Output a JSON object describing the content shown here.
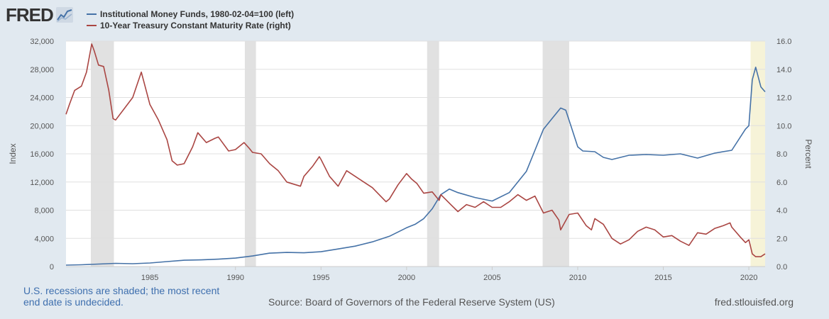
{
  "logo": {
    "text": "FRED"
  },
  "footer": {
    "note": "U.S. recessions are shaded; the most recent end date is undecided.",
    "source": "Source: Board of Governors of the Federal Reserve System (US)",
    "site": "fred.stlouisfed.org"
  },
  "colors": {
    "background": "#e1e9f0",
    "plot_background": "#ffffff",
    "recession": "#e1e1e1",
    "recession_recent": "#f6f3d8",
    "series_left": "#4572a7",
    "series_right": "#aa4643",
    "grid": "#e0e0e0",
    "axis_text": "#555555"
  },
  "chart_data": {
    "type": "line",
    "title": "",
    "legend_position": "top-left",
    "xlim": [
      1980.1,
      2020.95
    ],
    "x_ticks": [
      1985,
      1990,
      1995,
      2000,
      2005,
      2010,
      2015,
      2020
    ],
    "left_axis": {
      "label": "Index",
      "ylim": [
        0,
        32000
      ],
      "ticks": [
        0,
        4000,
        8000,
        12000,
        16000,
        20000,
        24000,
        28000,
        32000
      ],
      "tick_labels": [
        "0",
        "4,000",
        "8,000",
        "12,000",
        "16,000",
        "20,000",
        "24,000",
        "28,000",
        "32,000"
      ]
    },
    "right_axis": {
      "label": "Percent",
      "ylim": [
        0,
        16
      ],
      "ticks": [
        0,
        2,
        4,
        6,
        8,
        10,
        12,
        14,
        16
      ],
      "tick_labels": [
        "0.0",
        "2.0",
        "4.0",
        "6.0",
        "8.0",
        "10.0",
        "12.0",
        "14.0",
        "16.0"
      ]
    },
    "grid": true,
    "recessions": [
      {
        "start": 1981.55,
        "end": 1982.9,
        "ongoing": false
      },
      {
        "start": 1990.55,
        "end": 1991.2,
        "ongoing": false
      },
      {
        "start": 2001.2,
        "end": 2001.9,
        "ongoing": false
      },
      {
        "start": 2007.95,
        "end": 2009.5,
        "ongoing": false
      },
      {
        "start": 2020.1,
        "end": 2020.95,
        "ongoing": true
      }
    ],
    "series": [
      {
        "name": "Institutional Money Funds, 1980-02-04=100 (left)",
        "axis": "left",
        "x": [
          1980.1,
          1981,
          1982,
          1983,
          1984,
          1985,
          1986,
          1987,
          1988,
          1989,
          1990,
          1991,
          1992,
          1993,
          1994,
          1995,
          1996,
          1997,
          1998,
          1999,
          2000,
          2000.5,
          2001,
          2001.5,
          2002,
          2002.5,
          2003,
          2004,
          2005,
          2006,
          2007,
          2007.5,
          2008,
          2008.5,
          2009,
          2009.3,
          2009.6,
          2010,
          2010.3,
          2011,
          2011.5,
          2012,
          2013,
          2014,
          2015,
          2016,
          2017,
          2018,
          2019,
          2019.8,
          2020,
          2020.2,
          2020.4,
          2020.7,
          2020.95
        ],
        "values": [
          200,
          250,
          350,
          450,
          400,
          500,
          700,
          900,
          950,
          1050,
          1200,
          1500,
          1900,
          2000,
          1950,
          2100,
          2500,
          2900,
          3500,
          4300,
          5500,
          6000,
          6800,
          8200,
          10200,
          11000,
          10500,
          9800,
          9300,
          10500,
          13500,
          16500,
          19500,
          21000,
          22500,
          22200,
          20000,
          17000,
          16400,
          16300,
          15500,
          15200,
          15800,
          15900,
          15800,
          16000,
          15400,
          16100,
          16500,
          19500,
          20000,
          26500,
          28300,
          25500,
          24800
        ]
      },
      {
        "name": "10-Year Treasury Constant Maturity Rate (right)",
        "axis": "right",
        "x": [
          1980.1,
          1980.3,
          1980.6,
          1981,
          1981.3,
          1981.6,
          1981.75,
          1982,
          1982.3,
          1982.6,
          1982.85,
          1983,
          1983.5,
          1984,
          1984.5,
          1985,
          1985.5,
          1986,
          1986.3,
          1986.6,
          1987,
          1987.5,
          1987.8,
          1988.3,
          1988.8,
          1989,
          1989.6,
          1990,
          1990.5,
          1990.8,
          1991,
          1991.5,
          1992,
          1992.5,
          1993,
          1993.8,
          1994,
          1994.5,
          1994.9,
          1995,
          1995.5,
          1996,
          1996.5,
          1997,
          1997.5,
          1998,
          1998.8,
          1999,
          1999.5,
          2000,
          2000.3,
          2000.6,
          2001,
          2001.5,
          2001.9,
          2002,
          2002.5,
          2003,
          2003.5,
          2004,
          2004.5,
          2005,
          2005.5,
          2006,
          2006.5,
          2007,
          2007.5,
          2008,
          2008.5,
          2008.9,
          2009,
          2009.5,
          2010,
          2010.5,
          2010.8,
          2011,
          2011.5,
          2012,
          2012.5,
          2013,
          2013.5,
          2014,
          2014.5,
          2015,
          2015.5,
          2016,
          2016.5,
          2017,
          2017.5,
          2018,
          2018.5,
          2018.9,
          2019,
          2019.5,
          2019.8,
          2020,
          2020.2,
          2020.4,
          2020.7,
          2020.95
        ],
        "values": [
          10.8,
          11.5,
          12.5,
          12.8,
          13.8,
          15.8,
          15.3,
          14.3,
          14.2,
          12.5,
          10.5,
          10.4,
          11.2,
          12.0,
          13.8,
          11.5,
          10.4,
          9.0,
          7.5,
          7.2,
          7.3,
          8.5,
          9.5,
          8.8,
          9.1,
          9.2,
          8.2,
          8.3,
          8.8,
          8.4,
          8.1,
          8.0,
          7.3,
          6.8,
          6.0,
          5.7,
          6.4,
          7.1,
          7.8,
          7.6,
          6.4,
          5.7,
          6.8,
          6.4,
          6.0,
          5.6,
          4.6,
          4.8,
          5.8,
          6.6,
          6.2,
          5.9,
          5.2,
          5.3,
          4.7,
          5.1,
          4.5,
          3.9,
          4.4,
          4.2,
          4.6,
          4.2,
          4.2,
          4.6,
          5.1,
          4.7,
          5.0,
          3.8,
          4.0,
          3.3,
          2.6,
          3.7,
          3.8,
          2.9,
          2.6,
          3.4,
          3.0,
          2.0,
          1.6,
          1.9,
          2.5,
          2.8,
          2.6,
          2.1,
          2.2,
          1.8,
          1.5,
          2.4,
          2.3,
          2.7,
          2.9,
          3.1,
          2.8,
          2.1,
          1.7,
          1.9,
          0.9,
          0.7,
          0.7,
          0.9
        ]
      }
    ]
  }
}
